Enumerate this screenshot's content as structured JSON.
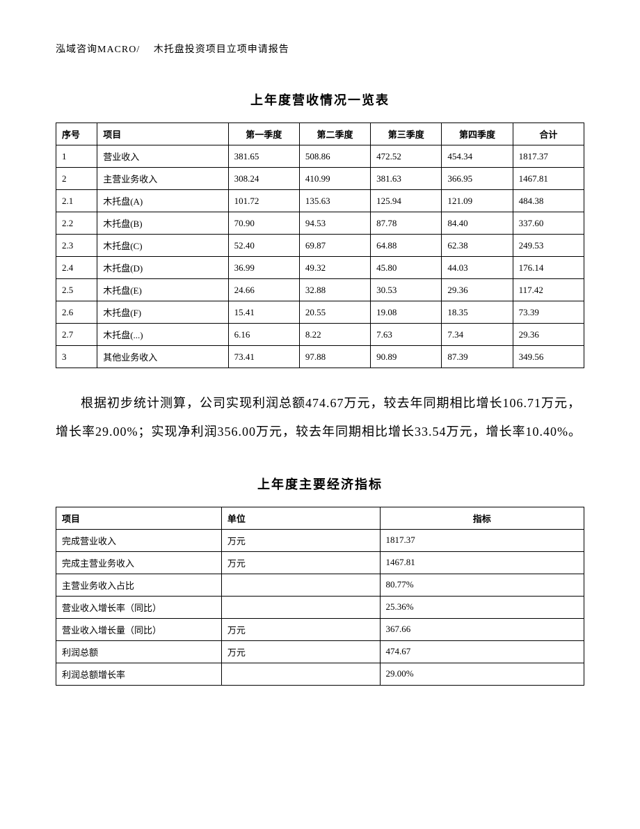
{
  "header": "泓域咨询MACRO/　 木托盘投资项目立项申请报告",
  "table1": {
    "title": "上年度营收情况一览表",
    "headers": [
      "序号",
      "项目",
      "第一季度",
      "第二季度",
      "第三季度",
      "第四季度",
      "合计"
    ],
    "rows": [
      [
        "1",
        "营业收入",
        "381.65",
        "508.86",
        "472.52",
        "454.34",
        "1817.37"
      ],
      [
        "2",
        "主营业务收入",
        "308.24",
        "410.99",
        "381.63",
        "366.95",
        "1467.81"
      ],
      [
        "2.1",
        "木托盘(A)",
        "101.72",
        "135.63",
        "125.94",
        "121.09",
        "484.38"
      ],
      [
        "2.2",
        "木托盘(B)",
        "70.90",
        "94.53",
        "87.78",
        "84.40",
        "337.60"
      ],
      [
        "2.3",
        "木托盘(C)",
        "52.40",
        "69.87",
        "64.88",
        "62.38",
        "249.53"
      ],
      [
        "2.4",
        "木托盘(D)",
        "36.99",
        "49.32",
        "45.80",
        "44.03",
        "176.14"
      ],
      [
        "2.5",
        "木托盘(E)",
        "24.66",
        "32.88",
        "30.53",
        "29.36",
        "117.42"
      ],
      [
        "2.6",
        "木托盘(F)",
        "15.41",
        "20.55",
        "19.08",
        "18.35",
        "73.39"
      ],
      [
        "2.7",
        "木托盘(...)",
        "6.16",
        "8.22",
        "7.63",
        "7.34",
        "29.36"
      ],
      [
        "3",
        "其他业务收入",
        "73.41",
        "97.88",
        "90.89",
        "87.39",
        "349.56"
      ]
    ]
  },
  "paragraph": "根据初步统计测算，公司实现利润总额474.67万元，较去年同期相比增长106.71万元，增长率29.00%；实现净利润356.00万元，较去年同期相比增长33.54万元，增长率10.40%。",
  "table2": {
    "title": "上年度主要经济指标",
    "headers": [
      "项目",
      "单位",
      "指标"
    ],
    "rows": [
      [
        "完成营业收入",
        "万元",
        "1817.37"
      ],
      [
        "完成主营业务收入",
        "万元",
        "1467.81"
      ],
      [
        "主营业务收入占比",
        "",
        "80.77%"
      ],
      [
        "营业收入增长率（同比）",
        "",
        "25.36%"
      ],
      [
        "营业收入增长量（同比）",
        "万元",
        "367.66"
      ],
      [
        "利润总额",
        "万元",
        "474.67"
      ],
      [
        "利润总额增长率",
        "",
        "29.00%"
      ]
    ]
  }
}
